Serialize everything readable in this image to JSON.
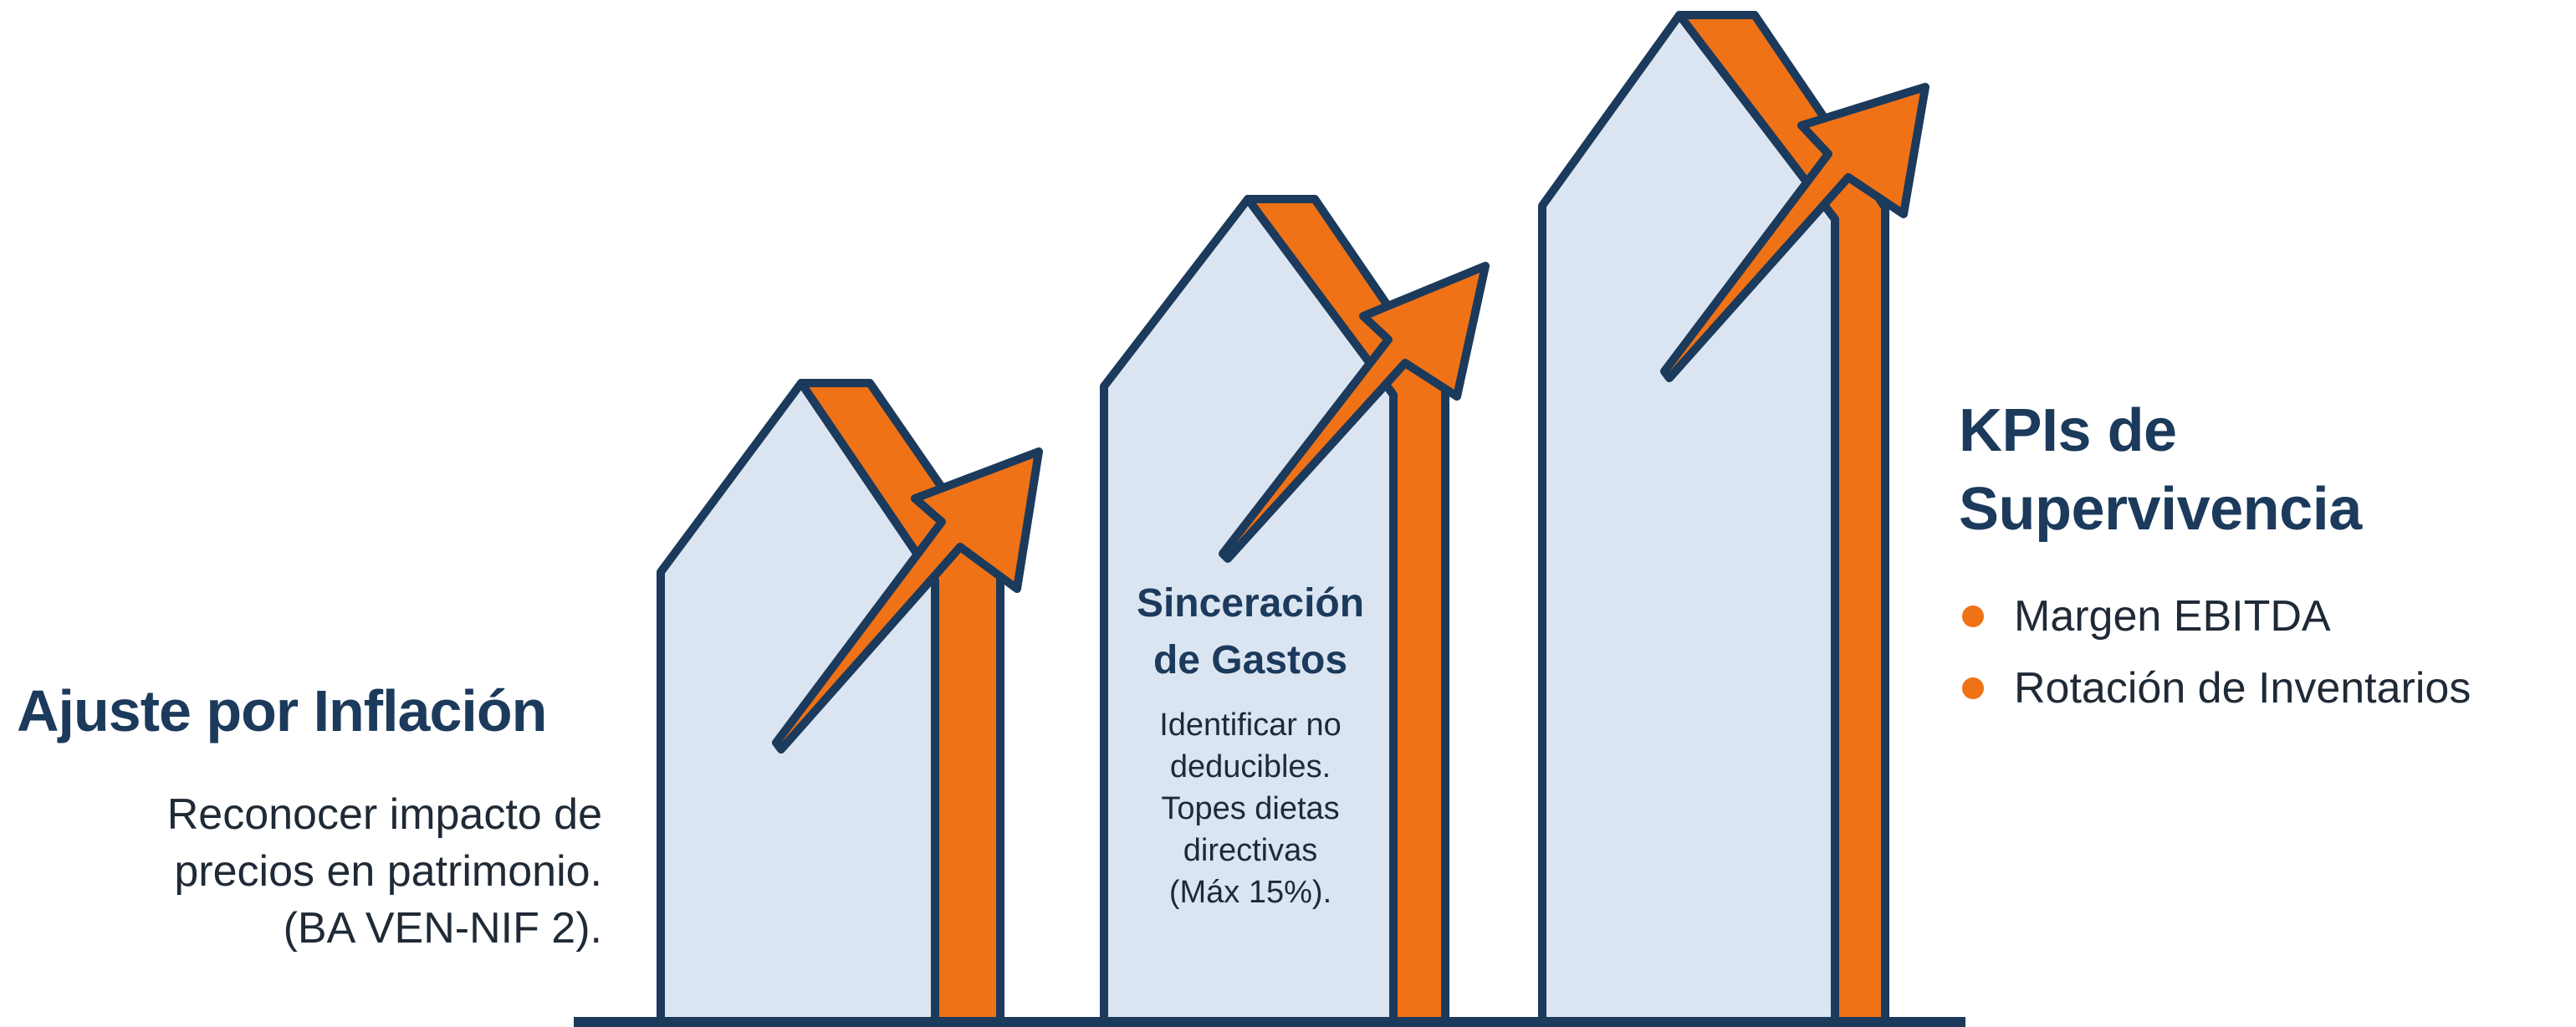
{
  "colors": {
    "navy": "#1b3a5c",
    "bar_fill": "#dbe5f2",
    "orange": "#f07216",
    "text_dark": "#1f2a36"
  },
  "steps": [
    {
      "title_lines": [
        "Ajuste por Inflación"
      ],
      "description_lines": [
        "Reconocer impacto de",
        "precios en patrimonio.",
        "(BA VEN-NIF 2)."
      ]
    },
    {
      "title_lines": [
        "Sinceración",
        "de Gastos"
      ],
      "description_lines": [
        "Identificar no",
        "deducibles.",
        "Topes dietas",
        "directivas",
        "(Máx 15%)."
      ]
    },
    {
      "title_lines": [
        "KPIs de",
        "Supervivencia"
      ],
      "bullets": [
        "Margen EBITDA",
        "Rotación de Inventarios"
      ]
    }
  ],
  "icons": {
    "bars": "growth-bars",
    "arrows": "up-right-arrow",
    "bullet": "orange-dot"
  }
}
